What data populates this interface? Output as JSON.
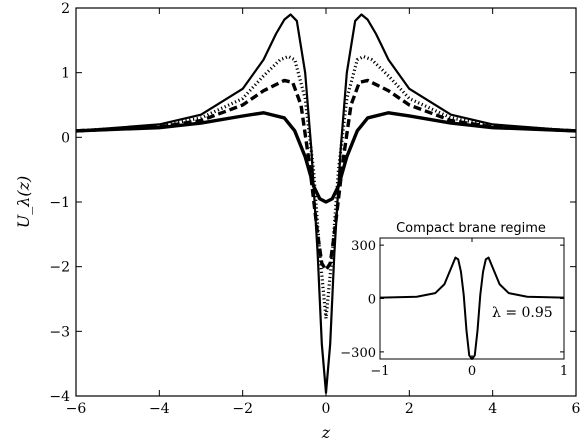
{
  "chart_data": [
    {
      "type": "line",
      "xlabel": "z",
      "ylabel": "U_λ(z)",
      "xlim": [
        -6,
        6
      ],
      "ylim": [
        -4,
        2
      ],
      "x_ticks": [
        -6,
        -4,
        -2,
        0,
        2,
        4,
        6
      ],
      "x_tick_labels": [
        "−6",
        "−4",
        "−2",
        "0",
        "2",
        "4",
        "6"
      ],
      "y_ticks": [
        -4,
        -3,
        -2,
        -1,
        0,
        1,
        2
      ],
      "y_tick_labels": [
        "−4",
        "−3",
        "−2",
        "−1",
        "0",
        "1",
        "2"
      ],
      "grid": false,
      "legend": "none",
      "series": [
        {
          "style": "solid-thin",
          "x": [
            -6,
            -4,
            -3,
            -2,
            -1.5,
            -1.2,
            -1,
            -0.85,
            -0.7,
            -0.5,
            -0.35,
            -0.2,
            -0.1,
            0,
            0.1,
            0.2,
            0.35,
            0.5,
            0.7,
            0.85,
            1,
            1.2,
            1.5,
            2,
            3,
            4,
            6
          ],
          "y": [
            0.1,
            0.2,
            0.35,
            0.75,
            1.2,
            1.6,
            1.82,
            1.9,
            1.8,
            1.0,
            -0.2,
            -1.8,
            -3.2,
            -3.95,
            -3.2,
            -1.8,
            -0.2,
            1.0,
            1.8,
            1.9,
            1.82,
            1.6,
            1.2,
            0.75,
            0.35,
            0.2,
            0.1
          ]
        },
        {
          "style": "dotted",
          "x": [
            -6,
            -4,
            -3,
            -2,
            -1.5,
            -1.1,
            -0.9,
            -0.75,
            -0.5,
            -0.3,
            -0.15,
            0,
            0.15,
            0.3,
            0.5,
            0.75,
            0.9,
            1.1,
            1.5,
            2,
            3,
            4,
            6
          ],
          "y": [
            0.1,
            0.18,
            0.3,
            0.6,
            0.95,
            1.2,
            1.25,
            1.2,
            0.6,
            -0.5,
            -1.8,
            -2.8,
            -1.8,
            -0.5,
            0.6,
            1.2,
            1.25,
            1.2,
            0.95,
            0.6,
            0.3,
            0.18,
            0.1
          ]
        },
        {
          "style": "dashed",
          "x": [
            -6,
            -4,
            -3,
            -2,
            -1.5,
            -1.0,
            -0.8,
            -0.6,
            -0.4,
            -0.2,
            -0.1,
            0,
            0.1,
            0.2,
            0.4,
            0.6,
            0.8,
            1.0,
            1.5,
            2,
            3,
            4,
            6
          ],
          "y": [
            0.1,
            0.16,
            0.26,
            0.5,
            0.72,
            0.88,
            0.85,
            0.5,
            -0.4,
            -1.5,
            -1.95,
            -2.05,
            -1.95,
            -1.5,
            -0.4,
            0.5,
            0.85,
            0.88,
            0.72,
            0.5,
            0.26,
            0.16,
            0.1
          ]
        },
        {
          "style": "solid-thick",
          "x": [
            -6,
            -4,
            -3,
            -2,
            -1.5,
            -1.0,
            -0.75,
            -0.5,
            -0.3,
            -0.15,
            0,
            0.15,
            0.3,
            0.5,
            0.75,
            1.0,
            1.5,
            2,
            3,
            4,
            6
          ],
          "y": [
            0.1,
            0.15,
            0.22,
            0.33,
            0.38,
            0.3,
            0.1,
            -0.3,
            -0.75,
            -0.95,
            -1.0,
            -0.95,
            -0.75,
            -0.3,
            0.1,
            0.3,
            0.38,
            0.33,
            0.22,
            0.15,
            0.1
          ]
        }
      ]
    },
    {
      "type": "line",
      "title": "Compact brane regime",
      "annotation": "λ = 0.95",
      "xlim": [
        -1,
        1
      ],
      "ylim": [
        -340,
        340
      ],
      "x_ticks": [
        -1,
        0,
        1
      ],
      "x_tick_labels": [
        "−1",
        "0",
        "1"
      ],
      "y_ticks": [
        -300,
        0,
        300
      ],
      "y_tick_labels": [
        "−300",
        "0",
        "300"
      ],
      "grid": false,
      "legend": "none",
      "series": [
        {
          "style": "solid",
          "x": [
            -1,
            -0.6,
            -0.4,
            -0.3,
            -0.22,
            -0.18,
            -0.15,
            -0.12,
            -0.09,
            -0.06,
            -0.03,
            0,
            0.03,
            0.06,
            0.09,
            0.12,
            0.15,
            0.18,
            0.22,
            0.3,
            0.4,
            0.6,
            1
          ],
          "y": [
            5,
            10,
            30,
            80,
            180,
            230,
            220,
            150,
            20,
            -180,
            -320,
            -340,
            -320,
            -180,
            20,
            150,
            220,
            230,
            180,
            80,
            30,
            10,
            5
          ]
        }
      ]
    }
  ]
}
